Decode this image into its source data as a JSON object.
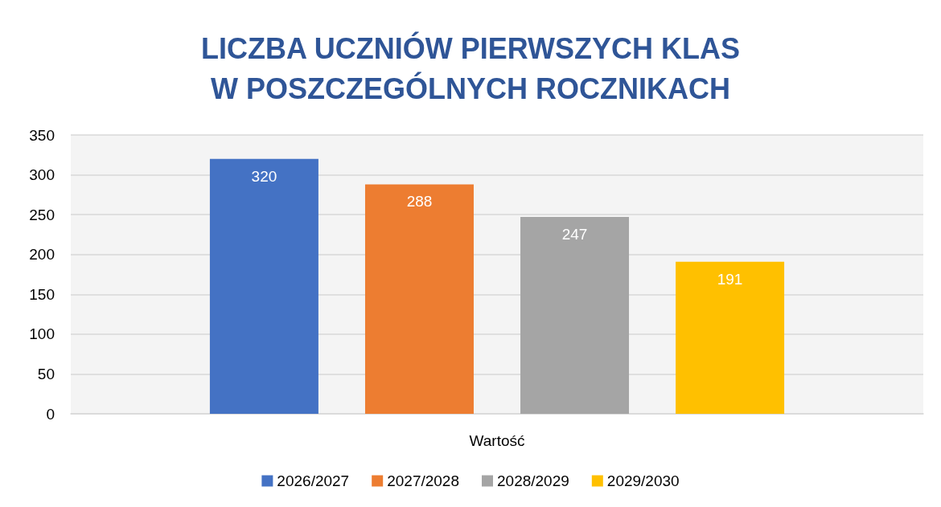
{
  "chart_data": {
    "type": "bar",
    "title": "LICZBA UCZNIÓW PIERWSZYCH KLAS\nW POSZCZEGÓLNYCH ROCZNIKACH",
    "categories": [
      "Wartość"
    ],
    "series": [
      {
        "name": "2026/2027",
        "color": "#4472c4",
        "values": [
          320
        ]
      },
      {
        "name": "2027/2028",
        "color": "#ed7d31",
        "values": [
          288
        ]
      },
      {
        "name": "2028/2029",
        "color": "#a5a5a5",
        "values": [
          247
        ]
      },
      {
        "name": "2029/2030",
        "color": "#ffc000",
        "values": [
          191
        ]
      }
    ],
    "ylim": [
      0,
      350
    ],
    "yticks": [
      0,
      50,
      100,
      150,
      200,
      250,
      300,
      350
    ],
    "grid": "y",
    "legend": "bottom",
    "data_labels": true
  }
}
